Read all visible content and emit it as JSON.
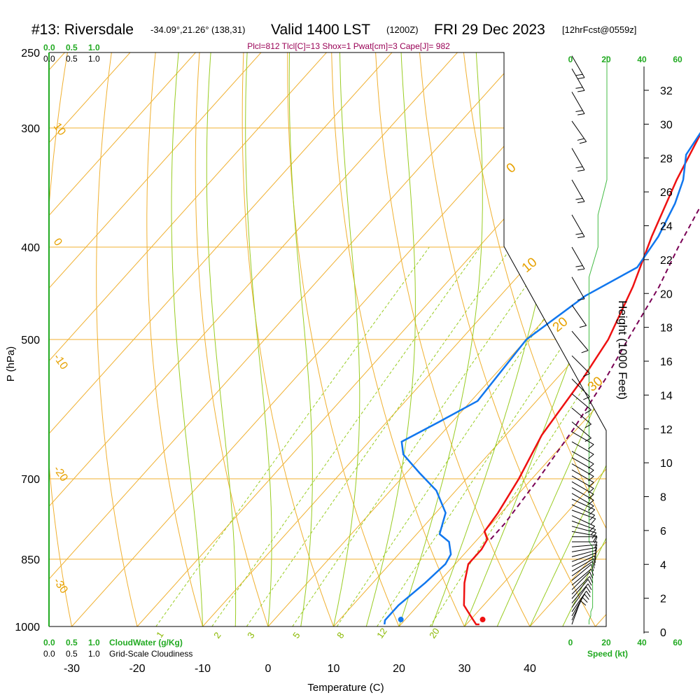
{
  "title": {
    "station": "#13: Riversdale",
    "coords": "-34.09°,21.26° (138,31)",
    "valid": "Valid 1400 LST",
    "utc": "(1200Z)",
    "date": "FRI 29 Dec 2023",
    "forecast": "[12hrFcst@0559z]"
  },
  "params": "Plcl=812 Tlcl[C]=13 Shox=1 Pwat[cm]=3 Cape[J]= 982",
  "chart_data": {
    "type": "line",
    "subtype": "skew-T log-P sounding",
    "xlabel": "Temperature (C)",
    "ylabel": "P (hPa)",
    "right_axis_label": "Height (1000 Feet)",
    "x_ticks": [
      "-30",
      "-20",
      "-10",
      "0",
      "10",
      "20",
      "30",
      "40"
    ],
    "y_ticks": [
      "250",
      "300",
      "400",
      "500",
      "700",
      "850",
      "1000"
    ],
    "height_ticks": [
      "0",
      "2",
      "4",
      "6",
      "8",
      "10",
      "12",
      "14",
      "16",
      "18",
      "20",
      "22",
      "24",
      "26",
      "28",
      "30",
      "32"
    ],
    "cloud_scale": [
      "0.0",
      "0.5",
      "1.0"
    ],
    "cloud_scale_label_bottom": "CloudWater (g/Kg)",
    "grid_cloud_label": "Grid-Scale Cloudiness",
    "wind_speed_ticks": [
      "0",
      "20",
      "40",
      "60"
    ],
    "wind_speed_label": "Speed (kt)",
    "theta_labels": [
      "10",
      "0",
      "-10",
      "-20",
      "-30"
    ],
    "theta_labels_right": [
      "0",
      "10",
      "20",
      "30"
    ],
    "mixing_ratio_labels": [
      "1",
      "2",
      "3",
      "5",
      "8",
      "12",
      "20"
    ],
    "series": [
      {
        "name": "temperature",
        "color": "#ee1111",
        "points": [
          [
            32,
            995
          ],
          [
            31.5,
            995
          ],
          [
            30,
            980
          ],
          [
            27,
            950
          ],
          [
            24,
            900
          ],
          [
            22,
            860
          ],
          [
            22,
            830
          ],
          [
            21.5,
            810
          ],
          [
            20,
            795
          ],
          [
            19.5,
            760
          ],
          [
            18,
            700
          ],
          [
            15.5,
            630
          ],
          [
            14,
            550
          ],
          [
            12.5,
            500
          ],
          [
            9,
            440
          ],
          [
            5,
            390
          ],
          [
            1,
            340
          ],
          [
            -2,
            300
          ],
          [
            -4,
            275
          ],
          [
            -4.5,
            260
          ]
        ]
      },
      {
        "name": "dewpoint",
        "color": "#1177ee",
        "points": [
          [
            17.5,
            995
          ],
          [
            17,
            985
          ],
          [
            17,
            950
          ],
          [
            18,
            900
          ],
          [
            18.5,
            860
          ],
          [
            18,
            840
          ],
          [
            16,
            815
          ],
          [
            13.5,
            800
          ],
          [
            11.5,
            760
          ],
          [
            7,
            720
          ],
          [
            2,
            690
          ],
          [
            -3,
            660
          ],
          [
            -5,
            640
          ],
          [
            -2,
            610
          ],
          [
            1,
            580
          ],
          [
            0,
            500
          ],
          [
            3,
            450
          ],
          [
            7,
            420
          ],
          [
            6,
            390
          ],
          [
            4,
            360
          ],
          [
            2,
            340
          ],
          [
            -1,
            320
          ],
          [
            -2,
            300
          ],
          [
            -3,
            285
          ],
          [
            -5,
            260
          ]
        ]
      },
      {
        "name": "parcel",
        "color": "#7a0055",
        "dashed": true,
        "points": [
          [
            22,
            810
          ],
          [
            22,
            780
          ],
          [
            21,
            700
          ],
          [
            19.5,
            620
          ],
          [
            17.5,
            550
          ],
          [
            15.5,
            500
          ],
          [
            13,
            440
          ],
          [
            10.5,
            400
          ],
          [
            7.5,
            350
          ],
          [
            5.5,
            310
          ],
          [
            3.5,
            280
          ],
          [
            2,
            260
          ]
        ]
      }
    ],
    "surface_temperature": 32.5,
    "surface_dewpoint": 20,
    "wind_profile": [
      {
        "p": 995,
        "dir": 200,
        "spd": 10
      },
      {
        "p": 985,
        "dir": 205,
        "spd": 10
      },
      {
        "p": 975,
        "dir": 210,
        "spd": 11
      },
      {
        "p": 965,
        "dir": 215,
        "spd": 11
      },
      {
        "p": 955,
        "dir": 215,
        "spd": 12
      },
      {
        "p": 945,
        "dir": 220,
        "spd": 12
      },
      {
        "p": 935,
        "dir": 220,
        "spd": 12
      },
      {
        "p": 925,
        "dir": 225,
        "spd": 12
      },
      {
        "p": 915,
        "dir": 225,
        "spd": 12
      },
      {
        "p": 905,
        "dir": 230,
        "spd": 12
      },
      {
        "p": 895,
        "dir": 230,
        "spd": 12
      },
      {
        "p": 885,
        "dir": 235,
        "spd": 12
      },
      {
        "p": 875,
        "dir": 240,
        "spd": 12
      },
      {
        "p": 865,
        "dir": 245,
        "spd": 12
      },
      {
        "p": 855,
        "dir": 250,
        "spd": 12
      },
      {
        "p": 845,
        "dir": 255,
        "spd": 12
      },
      {
        "p": 835,
        "dir": 260,
        "spd": 12
      },
      {
        "p": 825,
        "dir": 265,
        "spd": 12
      },
      {
        "p": 815,
        "dir": 270,
        "spd": 10
      },
      {
        "p": 805,
        "dir": 270,
        "spd": 10
      },
      {
        "p": 795,
        "dir": 280,
        "spd": 10
      },
      {
        "p": 785,
        "dir": 285,
        "spd": 10
      },
      {
        "p": 775,
        "dir": 290,
        "spd": 10
      },
      {
        "p": 765,
        "dir": 295,
        "spd": 10
      },
      {
        "p": 755,
        "dir": 290,
        "spd": 10
      },
      {
        "p": 745,
        "dir": 295,
        "spd": 10
      },
      {
        "p": 735,
        "dir": 295,
        "spd": 10
      },
      {
        "p": 725,
        "dir": 300,
        "spd": 10
      },
      {
        "p": 715,
        "dir": 300,
        "spd": 10
      },
      {
        "p": 705,
        "dir": 300,
        "spd": 10
      },
      {
        "p": 695,
        "dir": 300,
        "spd": 10
      },
      {
        "p": 685,
        "dir": 300,
        "spd": 10
      },
      {
        "p": 675,
        "dir": 300,
        "spd": 10
      },
      {
        "p": 665,
        "dir": 300,
        "spd": 10
      },
      {
        "p": 655,
        "dir": 300,
        "spd": 10
      },
      {
        "p": 640,
        "dir": 300,
        "spd": 10
      },
      {
        "p": 625,
        "dir": 300,
        "spd": 10
      },
      {
        "p": 610,
        "dir": 310,
        "spd": 10
      },
      {
        "p": 590,
        "dir": 310,
        "spd": 10
      },
      {
        "p": 570,
        "dir": 310,
        "spd": 10
      },
      {
        "p": 550,
        "dir": 315,
        "spd": 10
      },
      {
        "p": 520,
        "dir": 315,
        "spd": 10
      },
      {
        "p": 490,
        "dir": 320,
        "spd": 10
      },
      {
        "p": 460,
        "dir": 325,
        "spd": 10
      },
      {
        "p": 430,
        "dir": 330,
        "spd": 10
      },
      {
        "p": 400,
        "dir": 330,
        "spd": 15
      },
      {
        "p": 370,
        "dir": 330,
        "spd": 15
      },
      {
        "p": 340,
        "dir": 330,
        "spd": 20
      },
      {
        "p": 315,
        "dir": 330,
        "spd": 20
      },
      {
        "p": 295,
        "dir": 325,
        "spd": 20
      },
      {
        "p": 275,
        "dir": 330,
        "spd": 20
      },
      {
        "p": 260,
        "dir": 330,
        "spd": 20
      },
      {
        "p": 252,
        "dir": 330,
        "spd": 20
      }
    ]
  }
}
